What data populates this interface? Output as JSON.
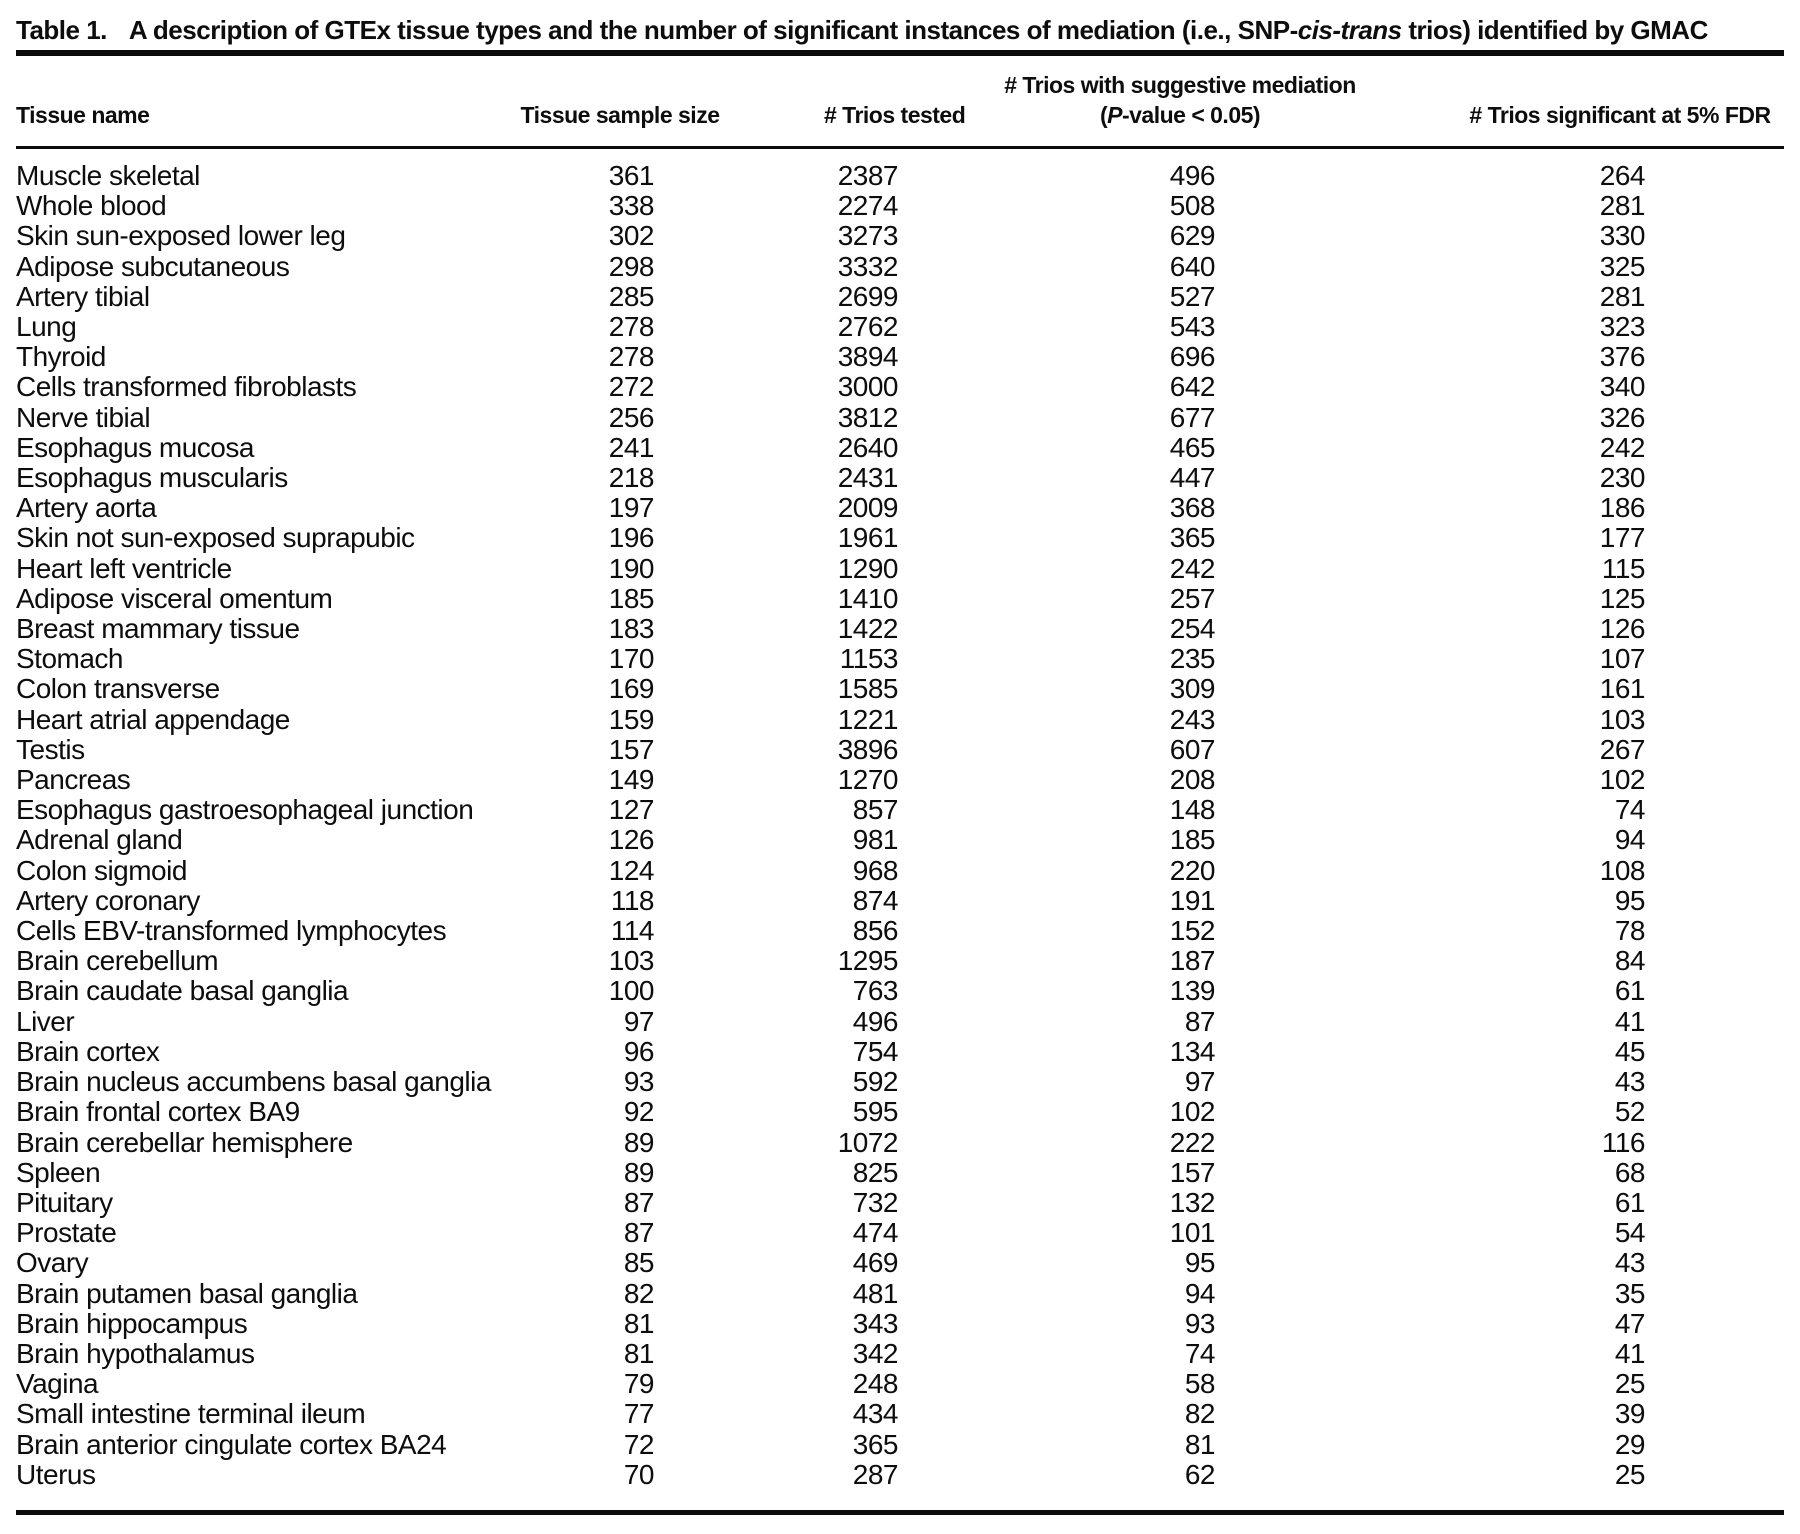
{
  "caption": {
    "label": "Table 1.",
    "text_before_italic": "A description of GTEx tissue types and the number of significant instances of mediation (i.e., SNP-",
    "italic": "cis-trans",
    "text_after_italic": " trios) identified by GMAC"
  },
  "table": {
    "headers": {
      "tissue_name": "Tissue name",
      "sample_size": "Tissue sample size",
      "trios_tested": "# Trios tested",
      "suggestive_line1": "# Trios with suggestive mediation",
      "suggestive_line2_pre": "(",
      "suggestive_line2_italic": "P",
      "suggestive_line2_post": "-value < 0.05)",
      "fdr": "# Trios significant at 5% FDR"
    },
    "rows": [
      {
        "tissue": "Muscle skeletal",
        "sample_size": "361",
        "trios_tested": "2387",
        "suggestive": "496",
        "fdr_significant": "264"
      },
      {
        "tissue": "Whole blood",
        "sample_size": "338",
        "trios_tested": "2274",
        "suggestive": "508",
        "fdr_significant": "281"
      },
      {
        "tissue": "Skin sun-exposed lower leg",
        "sample_size": "302",
        "trios_tested": "3273",
        "suggestive": "629",
        "fdr_significant": "330"
      },
      {
        "tissue": "Adipose subcutaneous",
        "sample_size": "298",
        "trios_tested": "3332",
        "suggestive": "640",
        "fdr_significant": "325"
      },
      {
        "tissue": "Artery tibial",
        "sample_size": "285",
        "trios_tested": "2699",
        "suggestive": "527",
        "fdr_significant": "281"
      },
      {
        "tissue": "Lung",
        "sample_size": "278",
        "trios_tested": "2762",
        "suggestive": "543",
        "fdr_significant": "323"
      },
      {
        "tissue": "Thyroid",
        "sample_size": "278",
        "trios_tested": "3894",
        "suggestive": "696",
        "fdr_significant": "376"
      },
      {
        "tissue": "Cells transformed fibroblasts",
        "sample_size": "272",
        "trios_tested": "3000",
        "suggestive": "642",
        "fdr_significant": "340"
      },
      {
        "tissue": "Nerve tibial",
        "sample_size": "256",
        "trios_tested": "3812",
        "suggestive": "677",
        "fdr_significant": "326"
      },
      {
        "tissue": "Esophagus mucosa",
        "sample_size": "241",
        "trios_tested": "2640",
        "suggestive": "465",
        "fdr_significant": "242"
      },
      {
        "tissue": "Esophagus muscularis",
        "sample_size": "218",
        "trios_tested": "2431",
        "suggestive": "447",
        "fdr_significant": "230"
      },
      {
        "tissue": "Artery aorta",
        "sample_size": "197",
        "trios_tested": "2009",
        "suggestive": "368",
        "fdr_significant": "186"
      },
      {
        "tissue": "Skin not sun-exposed suprapubic",
        "sample_size": "196",
        "trios_tested": "1961",
        "suggestive": "365",
        "fdr_significant": "177"
      },
      {
        "tissue": "Heart left ventricle",
        "sample_size": "190",
        "trios_tested": "1290",
        "suggestive": "242",
        "fdr_significant": "115"
      },
      {
        "tissue": "Adipose visceral omentum",
        "sample_size": "185",
        "trios_tested": "1410",
        "suggestive": "257",
        "fdr_significant": "125"
      },
      {
        "tissue": "Breast mammary tissue",
        "sample_size": "183",
        "trios_tested": "1422",
        "suggestive": "254",
        "fdr_significant": "126"
      },
      {
        "tissue": "Stomach",
        "sample_size": "170",
        "trios_tested": "1153",
        "suggestive": "235",
        "fdr_significant": "107"
      },
      {
        "tissue": "Colon transverse",
        "sample_size": "169",
        "trios_tested": "1585",
        "suggestive": "309",
        "fdr_significant": "161"
      },
      {
        "tissue": "Heart atrial appendage",
        "sample_size": "159",
        "trios_tested": "1221",
        "suggestive": "243",
        "fdr_significant": "103"
      },
      {
        "tissue": "Testis",
        "sample_size": "157",
        "trios_tested": "3896",
        "suggestive": "607",
        "fdr_significant": "267"
      },
      {
        "tissue": "Pancreas",
        "sample_size": "149",
        "trios_tested": "1270",
        "suggestive": "208",
        "fdr_significant": "102"
      },
      {
        "tissue": "Esophagus gastroesophageal junction",
        "sample_size": "127",
        "trios_tested": "857",
        "suggestive": "148",
        "fdr_significant": "74"
      },
      {
        "tissue": "Adrenal gland",
        "sample_size": "126",
        "trios_tested": "981",
        "suggestive": "185",
        "fdr_significant": "94"
      },
      {
        "tissue": "Colon sigmoid",
        "sample_size": "124",
        "trios_tested": "968",
        "suggestive": "220",
        "fdr_significant": "108"
      },
      {
        "tissue": "Artery coronary",
        "sample_size": "118",
        "trios_tested": "874",
        "suggestive": "191",
        "fdr_significant": "95"
      },
      {
        "tissue": "Cells EBV-transformed lymphocytes",
        "sample_size": "114",
        "trios_tested": "856",
        "suggestive": "152",
        "fdr_significant": "78"
      },
      {
        "tissue": "Brain cerebellum",
        "sample_size": "103",
        "trios_tested": "1295",
        "suggestive": "187",
        "fdr_significant": "84"
      },
      {
        "tissue": "Brain caudate basal ganglia",
        "sample_size": "100",
        "trios_tested": "763",
        "suggestive": "139",
        "fdr_significant": "61"
      },
      {
        "tissue": "Liver",
        "sample_size": "97",
        "trios_tested": "496",
        "suggestive": "87",
        "fdr_significant": "41"
      },
      {
        "tissue": "Brain cortex",
        "sample_size": "96",
        "trios_tested": "754",
        "suggestive": "134",
        "fdr_significant": "45"
      },
      {
        "tissue": "Brain nucleus accumbens basal ganglia",
        "sample_size": "93",
        "trios_tested": "592",
        "suggestive": "97",
        "fdr_significant": "43"
      },
      {
        "tissue": "Brain frontal cortex BA9",
        "sample_size": "92",
        "trios_tested": "595",
        "suggestive": "102",
        "fdr_significant": "52"
      },
      {
        "tissue": "Brain cerebellar hemisphere",
        "sample_size": "89",
        "trios_tested": "1072",
        "suggestive": "222",
        "fdr_significant": "116"
      },
      {
        "tissue": "Spleen",
        "sample_size": "89",
        "trios_tested": "825",
        "suggestive": "157",
        "fdr_significant": "68"
      },
      {
        "tissue": "Pituitary",
        "sample_size": "87",
        "trios_tested": "732",
        "suggestive": "132",
        "fdr_significant": "61"
      },
      {
        "tissue": "Prostate",
        "sample_size": "87",
        "trios_tested": "474",
        "suggestive": "101",
        "fdr_significant": "54"
      },
      {
        "tissue": "Ovary",
        "sample_size": "85",
        "trios_tested": "469",
        "suggestive": "95",
        "fdr_significant": "43"
      },
      {
        "tissue": "Brain putamen basal ganglia",
        "sample_size": "82",
        "trios_tested": "481",
        "suggestive": "94",
        "fdr_significant": "35"
      },
      {
        "tissue": "Brain hippocampus",
        "sample_size": "81",
        "trios_tested": "343",
        "suggestive": "93",
        "fdr_significant": "47"
      },
      {
        "tissue": "Brain hypothalamus",
        "sample_size": "81",
        "trios_tested": "342",
        "suggestive": "74",
        "fdr_significant": "41"
      },
      {
        "tissue": "Vagina",
        "sample_size": "79",
        "trios_tested": "248",
        "suggestive": "58",
        "fdr_significant": "25"
      },
      {
        "tissue": "Small intestine terminal ileum",
        "sample_size": "77",
        "trios_tested": "434",
        "suggestive": "82",
        "fdr_significant": "39"
      },
      {
        "tissue": "Brain anterior cingulate cortex BA24",
        "sample_size": "72",
        "trios_tested": "365",
        "suggestive": "81",
        "fdr_significant": "29"
      },
      {
        "tissue": "Uterus",
        "sample_size": "70",
        "trios_tested": "287",
        "suggestive": "62",
        "fdr_significant": "25"
      }
    ]
  }
}
